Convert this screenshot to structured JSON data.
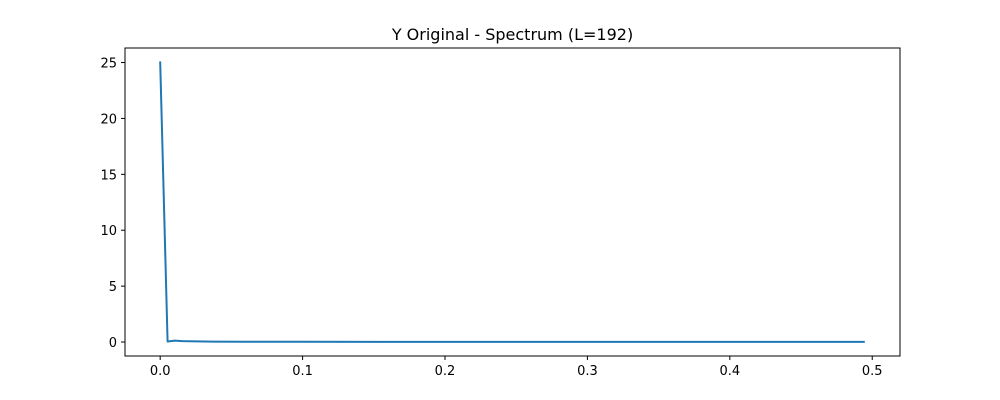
{
  "chart_data": {
    "type": "line",
    "title": "Y Original - Spectrum (L=192)",
    "xlabel": "",
    "ylabel": "",
    "xlim": [
      -0.0247,
      0.5195
    ],
    "ylim": [
      -1.25,
      26.3
    ],
    "x_ticks": [
      0.0,
      0.1,
      0.2,
      0.3,
      0.4,
      0.5
    ],
    "x_tick_labels": [
      "0.0",
      "0.1",
      "0.2",
      "0.3",
      "0.4",
      "0.5"
    ],
    "y_ticks": [
      0,
      5,
      10,
      15,
      20,
      25
    ],
    "y_tick_labels": [
      "0",
      "5",
      "10",
      "15",
      "20",
      "25"
    ],
    "grid": false,
    "legend": "none",
    "series": [
      {
        "color": "#1f77b4",
        "x": [
          0.0,
          0.0052,
          0.0104,
          0.0156,
          0.026,
          0.0365,
          0.0573,
          0.1,
          0.2,
          0.3,
          0.4,
          0.4948
        ],
        "y": [
          25.1,
          0.05,
          0.12,
          0.08,
          0.06,
          0.04,
          0.03,
          0.02,
          0.015,
          0.01,
          0.01,
          0.01
        ]
      }
    ]
  }
}
